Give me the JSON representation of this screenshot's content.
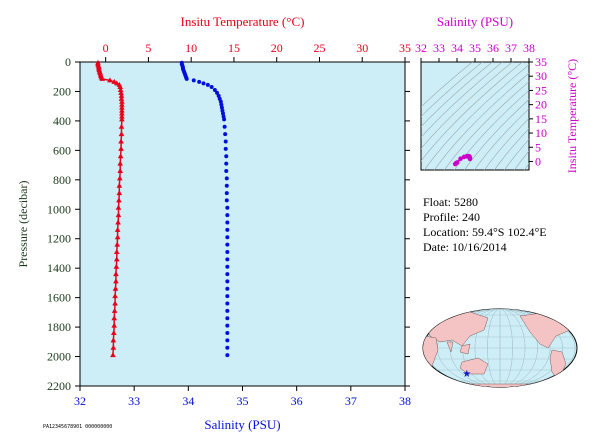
{
  "colors": {
    "temperature": "#e8001a",
    "salinity": "#0010d8",
    "ts_accent": "#cc00cc",
    "pressure_text": "#1a3a1a",
    "plot_bg": "#cdeef7",
    "land": "#f4c4c4",
    "ocean": "#cdeef7"
  },
  "chart_data": [
    {
      "type": "scatter",
      "title": "",
      "xlabel_top": "Insitu Temperature (°C)",
      "xlabel_bottom": "Salinity (PSU)",
      "ylabel": "Pressure (decibar)",
      "temp_xlim": [
        -3,
        35
      ],
      "sal_xlim": [
        32,
        38
      ],
      "ylim": [
        2200,
        0
      ],
      "temp_ticks": [
        "0",
        "5",
        "10",
        "15",
        "20",
        "25",
        "30",
        "35"
      ],
      "sal_ticks": [
        "32",
        "33",
        "34",
        "35",
        "36",
        "37",
        "38"
      ],
      "pressure_ticks": [
        "0",
        "200",
        "400",
        "600",
        "800",
        "1000",
        "1200",
        "1400",
        "1600",
        "1800",
        "2000",
        "2200"
      ],
      "series": [
        {
          "name": "Insitu Temperature",
          "marker": "triangle",
          "points": [
            {
              "temp": -0.9,
              "p": 5
            },
            {
              "temp": -0.9,
              "p": 15
            },
            {
              "temp": -0.85,
              "p": 25
            },
            {
              "temp": -0.8,
              "p": 35
            },
            {
              "temp": -0.8,
              "p": 45
            },
            {
              "temp": -0.75,
              "p": 55
            },
            {
              "temp": -0.7,
              "p": 65
            },
            {
              "temp": -0.65,
              "p": 75
            },
            {
              "temp": -0.6,
              "p": 85
            },
            {
              "temp": -0.55,
              "p": 95
            },
            {
              "temp": -0.5,
              "p": 105
            },
            {
              "temp": -0.4,
              "p": 115
            },
            {
              "temp": 0.5,
              "p": 125
            },
            {
              "temp": 1.0,
              "p": 135
            },
            {
              "temp": 1.3,
              "p": 145
            },
            {
              "temp": 1.6,
              "p": 155
            },
            {
              "temp": 1.7,
              "p": 170
            },
            {
              "temp": 1.75,
              "p": 190
            },
            {
              "temp": 1.8,
              "p": 210
            },
            {
              "temp": 1.85,
              "p": 230
            },
            {
              "temp": 1.85,
              "p": 250
            },
            {
              "temp": 1.9,
              "p": 270
            },
            {
              "temp": 1.9,
              "p": 290
            },
            {
              "temp": 1.9,
              "p": 310
            },
            {
              "temp": 1.9,
              "p": 330
            },
            {
              "temp": 1.9,
              "p": 350
            },
            {
              "temp": 1.9,
              "p": 370
            },
            {
              "temp": 1.9,
              "p": 390
            },
            {
              "temp": 1.85,
              "p": 440
            },
            {
              "temp": 1.85,
              "p": 490
            },
            {
              "temp": 1.8,
              "p": 540
            },
            {
              "temp": 1.8,
              "p": 590
            },
            {
              "temp": 1.75,
              "p": 640
            },
            {
              "temp": 1.7,
              "p": 690
            },
            {
              "temp": 1.7,
              "p": 740
            },
            {
              "temp": 1.65,
              "p": 790
            },
            {
              "temp": 1.6,
              "p": 840
            },
            {
              "temp": 1.6,
              "p": 890
            },
            {
              "temp": 1.55,
              "p": 940
            },
            {
              "temp": 1.5,
              "p": 990
            },
            {
              "temp": 1.5,
              "p": 1040
            },
            {
              "temp": 1.45,
              "p": 1090
            },
            {
              "temp": 1.4,
              "p": 1140
            },
            {
              "temp": 1.4,
              "p": 1190
            },
            {
              "temp": 1.35,
              "p": 1240
            },
            {
              "temp": 1.3,
              "p": 1290
            },
            {
              "temp": 1.3,
              "p": 1340
            },
            {
              "temp": 1.25,
              "p": 1390
            },
            {
              "temp": 1.2,
              "p": 1440
            },
            {
              "temp": 1.2,
              "p": 1490
            },
            {
              "temp": 1.15,
              "p": 1540
            },
            {
              "temp": 1.1,
              "p": 1590
            },
            {
              "temp": 1.1,
              "p": 1640
            },
            {
              "temp": 1.05,
              "p": 1690
            },
            {
              "temp": 1.0,
              "p": 1740
            },
            {
              "temp": 1.0,
              "p": 1790
            },
            {
              "temp": 0.95,
              "p": 1840
            },
            {
              "temp": 0.9,
              "p": 1890
            },
            {
              "temp": 0.9,
              "p": 1940
            },
            {
              "temp": 0.85,
              "p": 1990
            }
          ]
        },
        {
          "name": "Salinity",
          "marker": "dot",
          "points": [
            {
              "sal": 33.88,
              "p": 5
            },
            {
              "sal": 33.88,
              "p": 15
            },
            {
              "sal": 33.89,
              "p": 25
            },
            {
              "sal": 33.9,
              "p": 35
            },
            {
              "sal": 33.9,
              "p": 45
            },
            {
              "sal": 33.91,
              "p": 55
            },
            {
              "sal": 33.92,
              "p": 65
            },
            {
              "sal": 33.93,
              "p": 75
            },
            {
              "sal": 33.94,
              "p": 85
            },
            {
              "sal": 33.95,
              "p": 95
            },
            {
              "sal": 33.96,
              "p": 105
            },
            {
              "sal": 33.97,
              "p": 115
            },
            {
              "sal": 34.1,
              "p": 125
            },
            {
              "sal": 34.2,
              "p": 135
            },
            {
              "sal": 34.28,
              "p": 145
            },
            {
              "sal": 34.36,
              "p": 155
            },
            {
              "sal": 34.43,
              "p": 170
            },
            {
              "sal": 34.49,
              "p": 190
            },
            {
              "sal": 34.53,
              "p": 210
            },
            {
              "sal": 34.56,
              "p": 230
            },
            {
              "sal": 34.58,
              "p": 250
            },
            {
              "sal": 34.6,
              "p": 270
            },
            {
              "sal": 34.61,
              "p": 290
            },
            {
              "sal": 34.62,
              "p": 310
            },
            {
              "sal": 34.63,
              "p": 330
            },
            {
              "sal": 34.64,
              "p": 350
            },
            {
              "sal": 34.65,
              "p": 370
            },
            {
              "sal": 34.66,
              "p": 390
            },
            {
              "sal": 34.67,
              "p": 440
            },
            {
              "sal": 34.68,
              "p": 490
            },
            {
              "sal": 34.69,
              "p": 540
            },
            {
              "sal": 34.69,
              "p": 590
            },
            {
              "sal": 34.7,
              "p": 640
            },
            {
              "sal": 34.7,
              "p": 690
            },
            {
              "sal": 34.7,
              "p": 740
            },
            {
              "sal": 34.71,
              "p": 790
            },
            {
              "sal": 34.71,
              "p": 840
            },
            {
              "sal": 34.71,
              "p": 890
            },
            {
              "sal": 34.71,
              "p": 940
            },
            {
              "sal": 34.72,
              "p": 990
            },
            {
              "sal": 34.72,
              "p": 1040
            },
            {
              "sal": 34.72,
              "p": 1090
            },
            {
              "sal": 34.72,
              "p": 1140
            },
            {
              "sal": 34.72,
              "p": 1190
            },
            {
              "sal": 34.72,
              "p": 1240
            },
            {
              "sal": 34.72,
              "p": 1290
            },
            {
              "sal": 34.72,
              "p": 1340
            },
            {
              "sal": 34.72,
              "p": 1390
            },
            {
              "sal": 34.72,
              "p": 1440
            },
            {
              "sal": 34.72,
              "p": 1490
            },
            {
              "sal": 34.72,
              "p": 1540
            },
            {
              "sal": 34.72,
              "p": 1590
            },
            {
              "sal": 34.72,
              "p": 1640
            },
            {
              "sal": 34.72,
              "p": 1690
            },
            {
              "sal": 34.72,
              "p": 1740
            },
            {
              "sal": 34.72,
              "p": 1790
            },
            {
              "sal": 34.72,
              "p": 1840
            },
            {
              "sal": 34.72,
              "p": 1890
            },
            {
              "sal": 34.72,
              "p": 1940
            },
            {
              "sal": 34.72,
              "p": 1990
            }
          ]
        }
      ]
    },
    {
      "type": "scatter",
      "title": "",
      "xlabel": "Salinity (PSU)",
      "ylabel": "Insitu Temperature (°C)",
      "xlim": [
        32,
        38
      ],
      "ylim": [
        -3,
        35
      ],
      "x_ticks": [
        "32",
        "33",
        "34",
        "35",
        "36",
        "37",
        "38"
      ],
      "y_ticks": [
        "0",
        "5",
        "10",
        "15",
        "20",
        "25",
        "30",
        "35"
      ],
      "background": "density isolines",
      "points": [
        {
          "sal": 33.9,
          "temp": -0.9
        },
        {
          "sal": 33.95,
          "temp": -0.6
        },
        {
          "sal": 34.0,
          "temp": -0.4
        },
        {
          "sal": 34.2,
          "temp": 1.0
        },
        {
          "sal": 34.4,
          "temp": 1.6
        },
        {
          "sal": 34.55,
          "temp": 1.85
        },
        {
          "sal": 34.63,
          "temp": 1.9
        },
        {
          "sal": 34.68,
          "temp": 1.8
        },
        {
          "sal": 34.7,
          "temp": 1.6
        },
        {
          "sal": 34.71,
          "temp": 1.4
        },
        {
          "sal": 34.72,
          "temp": 1.2
        },
        {
          "sal": 34.72,
          "temp": 0.9
        }
      ]
    }
  ],
  "info": {
    "float": "Float:  5280",
    "profile": "Profile:  240",
    "location": "Location:  59.4°S  102.4°E",
    "date": "Date:  10/16/2014"
  },
  "map": {
    "marker": "star",
    "float_location": {
      "lat": -59.4,
      "lon": 102.4
    }
  },
  "footer": {
    "code": "PA12345678901 000000000"
  }
}
